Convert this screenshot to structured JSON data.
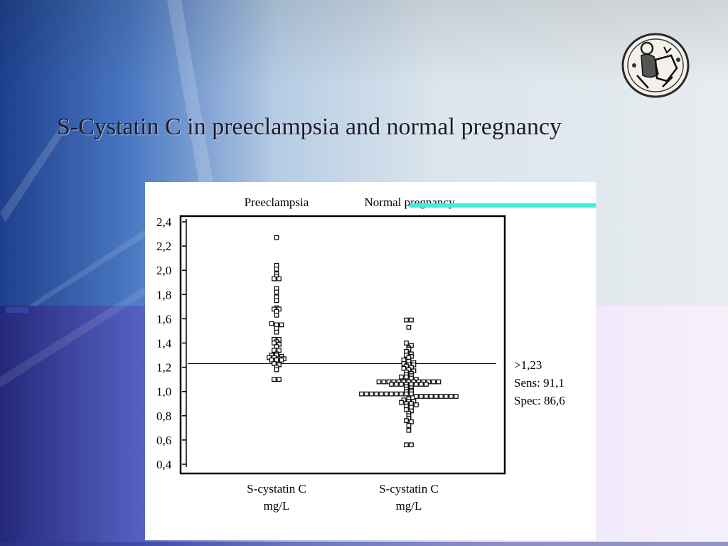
{
  "slide": {
    "title": "S-Cystatin C in preeclampsia and normal pregnancy",
    "seal_icon": "medieval-coin-seal-icon",
    "accent_bar_color": "#3ef0d6"
  },
  "chart_data": {
    "type": "scatter",
    "title": "",
    "categories": [
      "Preeclampsia",
      "Normal pregnancy"
    ],
    "x_tick_labels": [
      [
        "S-cystatin C",
        "mg/L"
      ],
      [
        "S-cystatin C",
        "mg/L"
      ]
    ],
    "ylim": [
      0.4,
      2.4
    ],
    "yticks": [
      "2,4",
      "2,2",
      "2,0",
      "1,8",
      "1,6",
      "1,4",
      "1,2",
      "1,0",
      "0,8",
      "0,6",
      "0,4"
    ],
    "ytick_values": [
      2.4,
      2.2,
      2.0,
      1.8,
      1.6,
      1.4,
      1.2,
      1.0,
      0.8,
      0.6,
      0.4
    ],
    "grid": false,
    "cutoff": {
      "value": 1.23,
      "labels": [
        ">1,23",
        "Sens: 91,1",
        "Spec: 86,6"
      ]
    },
    "series": [
      {
        "values": [
          2.27,
          2.04,
          2.01,
          1.97,
          1.95,
          1.93,
          1.93,
          1.85,
          1.82,
          1.78,
          1.75,
          1.69,
          1.68,
          1.68,
          1.66,
          1.63,
          1.56,
          1.55,
          1.55,
          1.52,
          1.49,
          1.43,
          1.43,
          1.41,
          1.4,
          1.39,
          1.37,
          1.34,
          1.34,
          1.31,
          1.3,
          1.3,
          1.29,
          1.28,
          1.28,
          1.27,
          1.27,
          1.26,
          1.26,
          1.26,
          1.23,
          1.22,
          1.2,
          1.18,
          1.1,
          1.1
        ]
      },
      {
        "values": [
          1.59,
          1.59,
          1.53,
          1.4,
          1.38,
          1.36,
          1.35,
          1.33,
          1.31,
          1.3,
          1.29,
          1.28,
          1.26,
          1.25,
          1.24,
          1.23,
          1.22,
          1.22,
          1.21,
          1.2,
          1.19,
          1.18,
          1.17,
          1.16,
          1.15,
          1.14,
          1.13,
          1.12,
          1.12,
          1.11,
          1.1,
          1.08,
          1.08,
          1.08,
          1.08,
          1.08,
          1.08,
          1.08,
          1.08,
          1.08,
          1.08,
          1.08,
          1.08,
          1.08,
          1.06,
          1.06,
          1.06,
          1.06,
          1.06,
          1.06,
          1.06,
          1.06,
          1.04,
          1.03,
          1.02,
          1.01,
          1.0,
          1.0,
          0.98,
          0.98,
          0.98,
          0.98,
          0.98,
          0.98,
          0.98,
          0.98,
          0.98,
          0.98,
          0.98,
          0.96,
          0.96,
          0.96,
          0.96,
          0.96,
          0.96,
          0.96,
          0.96,
          0.96,
          0.94,
          0.93,
          0.92,
          0.92,
          0.91,
          0.9,
          0.9,
          0.89,
          0.88,
          0.87,
          0.85,
          0.84,
          0.82,
          0.8,
          0.78,
          0.76,
          0.75,
          0.72,
          0.68,
          0.56,
          0.56
        ]
      }
    ]
  }
}
